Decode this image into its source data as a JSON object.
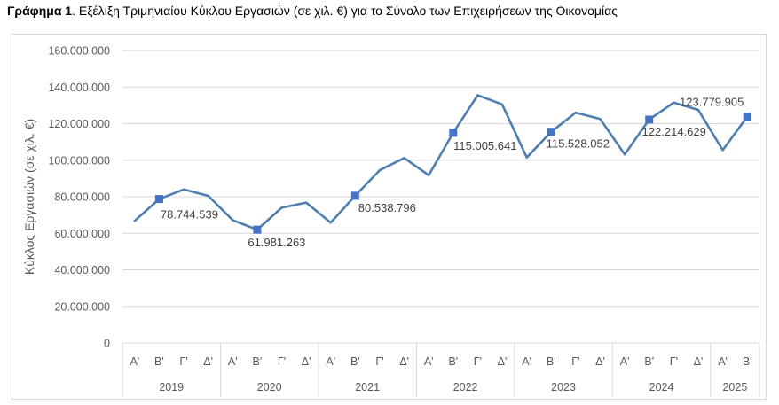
{
  "header": {
    "prefix": "Γράφημα 1",
    "text": ". Εξέλιξη Τριμηνιαίου Κύκλου Εργασιών (σε χιλ. €) για το Σύνολο των Επιχειρήσεων της Οικονομίας"
  },
  "chart_data": {
    "type": "line",
    "title": "Εξέλιξη Τριμηνιαίου Κύκλου Εργασιών (σε χιλ. €) για το Σύνολο των Επιχειρήσεων της Οικονομίας",
    "ylabel": "Κύκλος Εργασιών (σε χιλ. €)",
    "xlabel": "",
    "ylim": [
      0,
      160000000
    ],
    "yticks": [
      0,
      20000000,
      40000000,
      60000000,
      80000000,
      100000000,
      120000000,
      140000000,
      160000000
    ],
    "ytick_labels": [
      "0",
      "20.000.000",
      "40.000.000",
      "60.000.000",
      "80.000.000",
      "100.000.000",
      "120.000.000",
      "140.000.000",
      "160.000.000"
    ],
    "grid": true,
    "legend": "none",
    "line_color": "#4e7fb0",
    "marker_color": "#4472c4",
    "years": [
      {
        "label": "2019",
        "quarters": [
          "Α'",
          "Β'",
          "Γ'",
          "Δ'"
        ]
      },
      {
        "label": "2020",
        "quarters": [
          "Α'",
          "Β'",
          "Γ'",
          "Δ'"
        ]
      },
      {
        "label": "2021",
        "quarters": [
          "Α'",
          "Β'",
          "Γ'",
          "Δ'"
        ]
      },
      {
        "label": "2022",
        "quarters": [
          "Α'",
          "Β'",
          "Γ'",
          "Δ'"
        ]
      },
      {
        "label": "2023",
        "quarters": [
          "Α'",
          "Β'",
          "Γ'",
          "Δ'"
        ]
      },
      {
        "label": "2024",
        "quarters": [
          "Α'",
          "Β'",
          "Γ'",
          "Δ'"
        ]
      },
      {
        "label": "2025",
        "quarters": [
          "Α'",
          "Β'"
        ]
      }
    ],
    "values": [
      66800000,
      78744539,
      84000000,
      80500000,
      67200000,
      61981263,
      74000000,
      76800000,
      65800000,
      80538796,
      94500000,
      101200000,
      91800000,
      115005641,
      135500000,
      130500000,
      101500000,
      115528052,
      126000000,
      122500000,
      103200000,
      122214629,
      131500000,
      127500000,
      105500000,
      123779905
    ],
    "markers": [
      {
        "index": 1,
        "label": "78.744.539"
      },
      {
        "index": 5,
        "label": "61.981.263"
      },
      {
        "index": 9,
        "label": "80.538.796"
      },
      {
        "index": 13,
        "label": "115.005.641"
      },
      {
        "index": 17,
        "label": "115.528.052"
      },
      {
        "index": 21,
        "label": "122.214.629"
      },
      {
        "index": 25,
        "label": "123.779.905"
      }
    ]
  }
}
